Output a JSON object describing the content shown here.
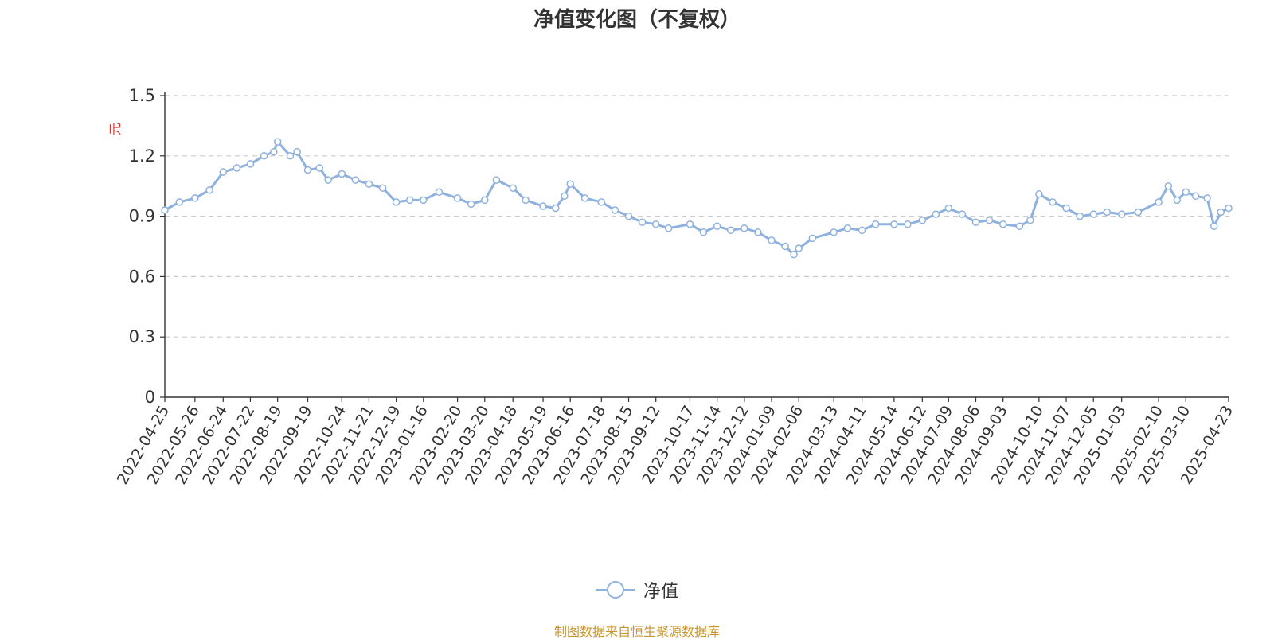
{
  "chart_data": {
    "type": "line",
    "title": "净值变化图（不复权）",
    "ylabel": "元",
    "xlabel": "",
    "ylim": [
      0,
      1.5
    ],
    "yticks": [
      "0",
      "0.3",
      "0.6",
      "0.9",
      "1.2",
      "1.5"
    ],
    "x_ticks": [
      "2022-04-25",
      "2022-05-26",
      "2022-06-24",
      "2022-07-22",
      "2022-08-19",
      "2022-09-19",
      "2022-10-24",
      "2022-11-21",
      "2022-12-19",
      "2023-01-16",
      "2023-02-20",
      "2023-03-20",
      "2023-04-18",
      "2023-05-19",
      "2023-06-16",
      "2023-07-18",
      "2023-08-15",
      "2023-09-12",
      "2023-10-17",
      "2023-11-14",
      "2023-12-12",
      "2024-01-09",
      "2024-02-06",
      "2024-03-13",
      "2024-04-11",
      "2024-05-14",
      "2024-06-12",
      "2024-07-09",
      "2024-08-06",
      "2024-09-03",
      "2024-10-10",
      "2024-11-07",
      "2024-12-05",
      "2025-01-03",
      "2025-02-10",
      "2025-03-10",
      "2025-04-23"
    ],
    "grid": true,
    "legend_position": "bottom",
    "series": [
      {
        "name": "净值",
        "color": "#8eb1de",
        "x": [
          "2022-04-25",
          "2022-05-10",
          "2022-05-26",
          "2022-06-10",
          "2022-06-24",
          "2022-07-08",
          "2022-07-22",
          "2022-08-05",
          "2022-08-15",
          "2022-08-19",
          "2022-09-01",
          "2022-09-08",
          "2022-09-19",
          "2022-10-01",
          "2022-10-10",
          "2022-10-24",
          "2022-11-07",
          "2022-11-21",
          "2022-12-05",
          "2022-12-19",
          "2023-01-02",
          "2023-01-16",
          "2023-02-01",
          "2023-02-20",
          "2023-03-06",
          "2023-03-20",
          "2023-04-01",
          "2023-04-18",
          "2023-05-01",
          "2023-05-19",
          "2023-06-01",
          "2023-06-10",
          "2023-06-16",
          "2023-07-01",
          "2023-07-18",
          "2023-08-01",
          "2023-08-15",
          "2023-08-29",
          "2023-09-12",
          "2023-09-25",
          "2023-10-17",
          "2023-10-31",
          "2023-11-14",
          "2023-11-28",
          "2023-12-12",
          "2023-12-26",
          "2024-01-09",
          "2024-01-23",
          "2024-02-01",
          "2024-02-06",
          "2024-02-20",
          "2024-03-13",
          "2024-03-27",
          "2024-04-11",
          "2024-04-25",
          "2024-05-14",
          "2024-05-28",
          "2024-06-12",
          "2024-06-26",
          "2024-07-09",
          "2024-07-23",
          "2024-08-06",
          "2024-08-20",
          "2024-09-03",
          "2024-09-20",
          "2024-10-01",
          "2024-10-10",
          "2024-10-24",
          "2024-11-07",
          "2024-11-21",
          "2024-12-05",
          "2024-12-19",
          "2025-01-03",
          "2025-01-20",
          "2025-02-10",
          "2025-02-20",
          "2025-03-01",
          "2025-03-10",
          "2025-03-20",
          "2025-04-01",
          "2025-04-08",
          "2025-04-15",
          "2025-04-23"
        ],
        "values": [
          0.93,
          0.97,
          0.99,
          1.03,
          1.12,
          1.14,
          1.16,
          1.2,
          1.22,
          1.27,
          1.2,
          1.22,
          1.13,
          1.14,
          1.08,
          1.11,
          1.08,
          1.06,
          1.04,
          0.97,
          0.98,
          0.98,
          1.02,
          0.99,
          0.96,
          0.98,
          1.08,
          1.04,
          0.98,
          0.95,
          0.94,
          1.0,
          1.06,
          0.99,
          0.97,
          0.93,
          0.9,
          0.87,
          0.86,
          0.84,
          0.86,
          0.82,
          0.85,
          0.83,
          0.84,
          0.82,
          0.78,
          0.75,
          0.71,
          0.74,
          0.79,
          0.82,
          0.84,
          0.83,
          0.86,
          0.86,
          0.86,
          0.88,
          0.91,
          0.94,
          0.91,
          0.87,
          0.88,
          0.86,
          0.85,
          0.88,
          1.01,
          0.97,
          0.94,
          0.9,
          0.91,
          0.92,
          0.91,
          0.92,
          0.97,
          1.05,
          0.98,
          1.02,
          1.0,
          0.99,
          0.85,
          0.92,
          0.94
        ]
      }
    ]
  },
  "legend": {
    "label": "净值"
  },
  "source_note": "制图数据来自恒生聚源数据库"
}
